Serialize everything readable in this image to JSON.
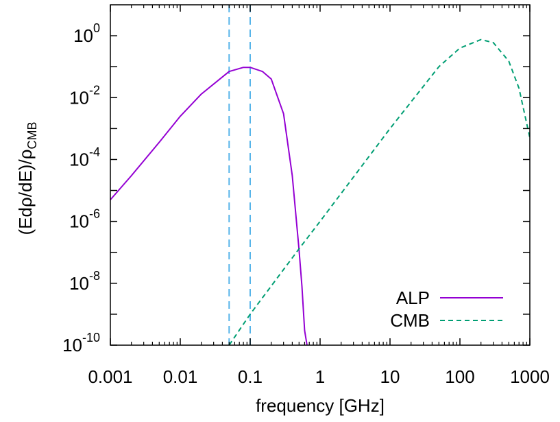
{
  "chart_data": {
    "type": "line",
    "title": "",
    "xlabel": "frequency [GHz]",
    "ylabel": {
      "main": "(Edρ/dE)/ρ",
      "sub": "CMB"
    },
    "x_scale": "log",
    "y_scale": "log",
    "xlim": [
      0.001,
      1000
    ],
    "ylim": [
      1e-10,
      10
    ],
    "x_ticks": [
      "0.001",
      "0.01",
      "0.1",
      "1",
      "10",
      "100",
      "1000"
    ],
    "y_ticks": [
      {
        "base": "10",
        "exp": "0"
      },
      {
        "base": "10",
        "exp": "-2"
      },
      {
        "base": "10",
        "exp": "-4"
      },
      {
        "base": "10",
        "exp": "-6"
      },
      {
        "base": "10",
        "exp": "-8"
      },
      {
        "base": "10",
        "exp": "-10"
      }
    ],
    "grid": false,
    "legend_position": "bottom-right",
    "series": [
      {
        "name": "ALP",
        "color": "#9400d3",
        "dash": "solid",
        "points": [
          [
            0.001,
            5e-06
          ],
          [
            0.002,
            3e-05
          ],
          [
            0.005,
            0.00036
          ],
          [
            0.01,
            0.0025
          ],
          [
            0.02,
            0.013
          ],
          [
            0.05,
            0.07
          ],
          [
            0.08,
            0.095
          ],
          [
            0.1,
            0.095
          ],
          [
            0.15,
            0.07
          ],
          [
            0.2,
            0.04
          ],
          [
            0.3,
            0.003
          ],
          [
            0.4,
            3e-05
          ],
          [
            0.5,
            1.2e-07
          ],
          [
            0.55,
            8e-09
          ],
          [
            0.6,
            3e-10
          ],
          [
            0.65,
            1e-10
          ]
        ]
      },
      {
        "name": "CMB",
        "color": "#009e73",
        "dash": "dashed",
        "points": [
          [
            0.05,
            1e-10
          ],
          [
            0.1,
            1e-09
          ],
          [
            0.5,
            1.3e-07
          ],
          [
            1,
            1e-06
          ],
          [
            10,
            0.001
          ],
          [
            50,
            0.1
          ],
          [
            100,
            0.4
          ],
          [
            200,
            0.75
          ],
          [
            300,
            0.6
          ],
          [
            500,
            0.15
          ],
          [
            700,
            0.02
          ],
          [
            1000,
            0.0005
          ]
        ]
      }
    ],
    "vertical_lines": {
      "color": "#56b4e9",
      "dash": "dashed",
      "x": [
        0.05,
        0.1
      ]
    }
  }
}
